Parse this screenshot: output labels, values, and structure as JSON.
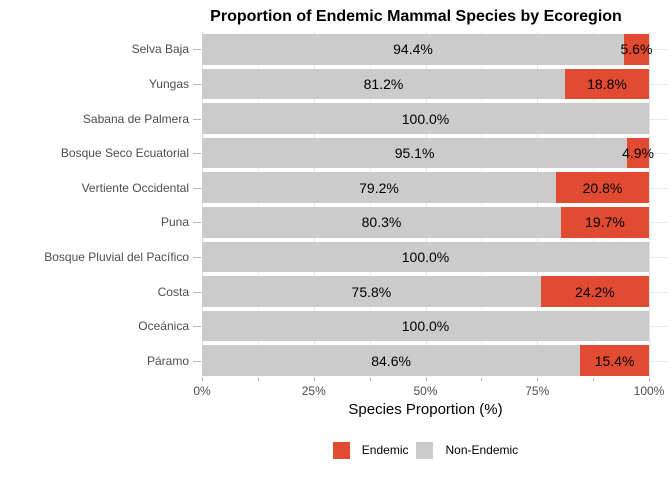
{
  "colors": {
    "endemic": "#E14B32",
    "non_endemic": "#CBCBCB",
    "grid_major": "#E4E4E4",
    "grid_minor": "#EFEFEF",
    "axis_text": "#4D4D4D",
    "bar_label_text": "#000000",
    "background": "#FFFFFF"
  },
  "chart_data": {
    "type": "bar",
    "orientation": "horizontal",
    "stacked": true,
    "percent_scale": true,
    "title": "Proportion of Endemic Mammal Species by Ecoregion",
    "xlabel": "Species Proportion (%)",
    "ylabel": "",
    "xlim": [
      0,
      100
    ],
    "x_tick_values": [
      0,
      25,
      50,
      75,
      100
    ],
    "x_tick_labels": [
      "0%",
      "25%",
      "50%",
      "75%",
      "100%"
    ],
    "x_minor_tick_values": [
      12.5,
      37.5,
      62.5,
      87.5
    ],
    "grid": true,
    "legend_position": "bottom",
    "categories": [
      "Selva Baja",
      "Yungas",
      "Sabana de Palmera",
      "Bosque Seco Ecuatorial",
      "Vertiente Occidental",
      "Puna",
      "Bosque Pluvial del Pacífico",
      "Costa",
      "Oceánica",
      "Páramo"
    ],
    "series": [
      {
        "name": "Non-Endemic",
        "color": "#CBCBCB",
        "values": [
          94.4,
          81.2,
          100.0,
          95.1,
          79.2,
          80.3,
          100.0,
          75.8,
          100.0,
          84.6
        ],
        "labels": [
          "94.4%",
          "81.2%",
          "100.0%",
          "95.1%",
          "79.2%",
          "80.3%",
          "100.0%",
          "75.8%",
          "100.0%",
          "84.6%"
        ]
      },
      {
        "name": "Endemic",
        "color": "#E14B32",
        "values": [
          5.6,
          18.8,
          0.0,
          4.9,
          20.8,
          19.7,
          0.0,
          24.2,
          0.0,
          15.4
        ],
        "labels": [
          "5.6%",
          "18.8%",
          "",
          "4.9%",
          "20.8%",
          "19.7%",
          "",
          "24.2%",
          "",
          "15.4%"
        ]
      }
    ],
    "legend": {
      "entries": [
        {
          "label": "Endemic",
          "color": "#E14B32"
        },
        {
          "label": "Non-Endemic",
          "color": "#CBCBCB"
        }
      ]
    }
  }
}
